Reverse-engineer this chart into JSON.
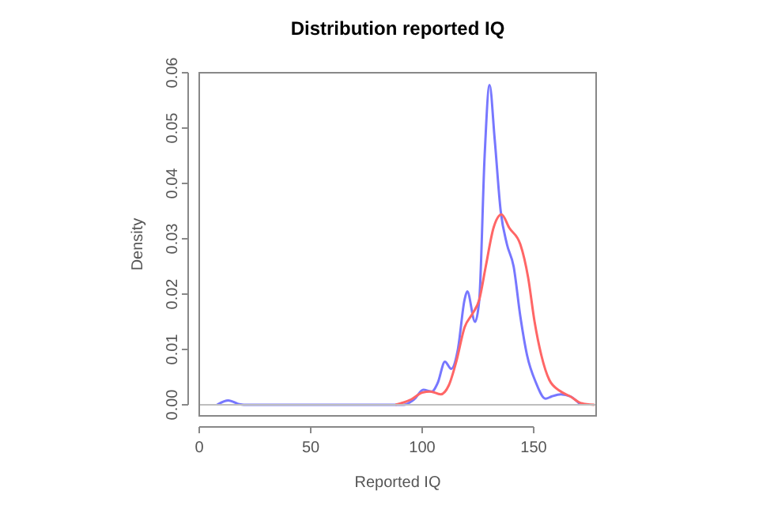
{
  "chart_data": {
    "type": "line",
    "title": "Distribution reported IQ",
    "xlabel": "Reported IQ",
    "ylabel": "Density",
    "xlim": [
      0,
      178
    ],
    "ylim": [
      -0.002,
      0.06
    ],
    "xticks": [
      0,
      50,
      100,
      150
    ],
    "yticks": [
      {
        "value": 0,
        "label": "0.00"
      },
      {
        "value": 0.01,
        "label": "0.01"
      },
      {
        "value": 0.02,
        "label": "0.02"
      },
      {
        "value": 0.03,
        "label": "0.03"
      },
      {
        "value": 0.04,
        "label": "0.04"
      },
      {
        "value": 0.05,
        "label": "0.05"
      },
      {
        "value": 0.06,
        "label": "0.06"
      }
    ],
    "grid": false,
    "marker": "none",
    "line_style": "solid",
    "ref_lines": [
      {
        "axis": "y",
        "value": 0,
        "color": "#bebebe"
      }
    ],
    "x": [
      8,
      13,
      18,
      20,
      50,
      91.7,
      96.4,
      100.5,
      104.3,
      107,
      110.2,
      113,
      116,
      119,
      120.2,
      123.7,
      125.6,
      128,
      130.2,
      132.5,
      135.2,
      138,
      141,
      144,
      147,
      151,
      155.3,
      158,
      162.2,
      166.5,
      170.8
    ],
    "series": [
      {
        "color": "#7777ff",
        "values": [
          0,
          0.0008,
          0.0001,
          0,
          0,
          0,
          0.001,
          0.0027,
          0.0024,
          0.004,
          0.0078,
          0.0065,
          0.01,
          0.019,
          0.0205,
          0.015,
          0.019,
          0.045,
          0.0578,
          0.048,
          0.035,
          0.029,
          0.025,
          0.016,
          0.009,
          0.004,
          0.0011,
          0.0015,
          0.0019,
          0.0015,
          0.0001
        ]
      },
      {
        "color": "#ff6666",
        "x": [
          88,
          95.2,
          100,
          103.6,
          108.3,
          111.9,
          115.4,
          119,
          122.6,
          125.6,
          128.5,
          132,
          135.6,
          139,
          144,
          147.5,
          150.4,
          153.4,
          157,
          161.8,
          166.5,
          171.3,
          177.2
        ],
        "values": [
          0,
          0.001,
          0.0022,
          0.0024,
          0.0019,
          0.0035,
          0.008,
          0.014,
          0.0165,
          0.019,
          0.025,
          0.032,
          0.0344,
          0.032,
          0.029,
          0.023,
          0.015,
          0.009,
          0.0045,
          0.0025,
          0.0015,
          0.0003,
          0
        ]
      }
    ]
  }
}
